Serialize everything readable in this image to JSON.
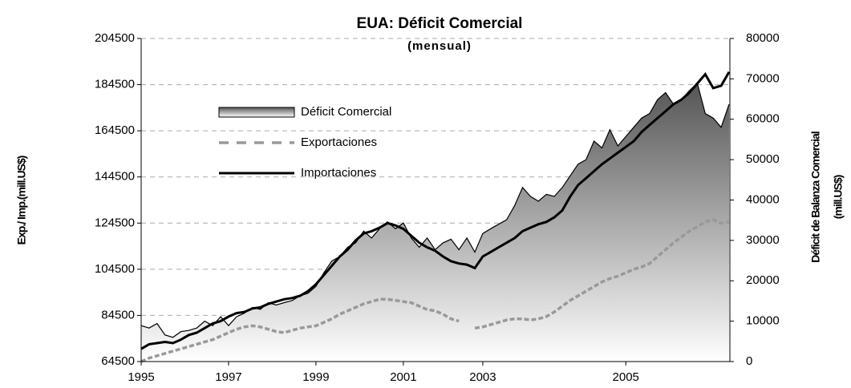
{
  "chart_data": {
    "type": "line",
    "title": "EUA: Déficit Comercial",
    "subtitle": "(mensual)",
    "y_label": "Exp./ Imp.(mill.US$)",
    "y2_label": [
      "Déficit de Balanza Comercial",
      "(mill.US$)"
    ],
    "categories": [
      "1995",
      null,
      null,
      null,
      null,
      null,
      null,
      null,
      null,
      null,
      null,
      "1997",
      null,
      null,
      null,
      null,
      null,
      null,
      null,
      null,
      null,
      null,
      "1999",
      null,
      null,
      null,
      null,
      null,
      null,
      null,
      null,
      null,
      null,
      "2001",
      null,
      null,
      null,
      null,
      null,
      null,
      null,
      null,
      null,
      "2003",
      null,
      null,
      null,
      null,
      null,
      null,
      null,
      null,
      null,
      null,
      null,
      null,
      null,
      null,
      null,
      null,
      null,
      "2005",
      null,
      null,
      null,
      null,
      null,
      null,
      null,
      null,
      null,
      null,
      null,
      null,
      null
    ],
    "ylim": [
      64500,
      204500
    ],
    "yticks": [
      64500,
      84500,
      104500,
      124500,
      144500,
      164500,
      184500,
      204500
    ],
    "y2lim": [
      0,
      80000
    ],
    "y2ticks": [
      0,
      10000,
      20000,
      30000,
      40000,
      50000,
      60000,
      70000,
      80000
    ],
    "grid": true,
    "series": [
      {
        "name": "Déficit Comercial",
        "kind": "area",
        "axis": "y2",
        "color": "#6e6e6e",
        "values": [
          8900,
          8300,
          9400,
          6600,
          6000,
          7400,
          7700,
          8300,
          10000,
          8900,
          11100,
          8900,
          11100,
          12000,
          13400,
          12900,
          14600,
          14000,
          14600,
          15100,
          16300,
          16900,
          18600,
          22000,
          24900,
          26000,
          28300,
          29400,
          32300,
          30600,
          32900,
          34600,
          32900,
          34300,
          30600,
          28300,
          30600,
          27700,
          29400,
          30300,
          27700,
          30600,
          27100,
          31700,
          32900,
          34000,
          35100,
          38600,
          43100,
          40900,
          39700,
          41400,
          40900,
          43100,
          46000,
          48900,
          50000,
          54600,
          52900,
          57400,
          53400,
          55700,
          58000,
          60300,
          61400,
          64900,
          66600,
          63700,
          64900,
          67100,
          68900,
          61400,
          60300,
          58000,
          63700
        ]
      },
      {
        "name": "Exportaciones",
        "kind": "dashed",
        "color": "#999999",
        "values": [
          64500,
          66000,
          67000,
          68000,
          69000,
          70000,
          71000,
          72000,
          73000,
          74000,
          75500,
          77000,
          78500,
          79500,
          80000,
          79500,
          78500,
          77500,
          77000,
          78000,
          79000,
          79500,
          80000,
          81500,
          83000,
          85000,
          86500,
          88000,
          89500,
          90500,
          91500,
          91500,
          91000,
          90500,
          90000,
          88500,
          87000,
          86500,
          85000,
          83000,
          82000,
          null,
          79000,
          79500,
          80500,
          81500,
          82500,
          83000,
          83000,
          82500,
          83000,
          84000,
          86000,
          88500,
          91000,
          93000,
          95000,
          97000,
          99000,
          100500,
          101500,
          103000,
          104500,
          105500,
          107000,
          110000,
          113000,
          116000,
          118500,
          121000,
          123000,
          125000,
          126000,
          124500,
          125000
        ]
      },
      {
        "name": "Importaciones",
        "kind": "solid",
        "color": "#000000",
        "values": [
          70000,
          72000,
          72500,
          73000,
          72500,
          74000,
          76000,
          77000,
          79000,
          81000,
          82000,
          84000,
          85500,
          86000,
          87500,
          88000,
          89500,
          90500,
          91500,
          92000,
          93000,
          95000,
          98000,
          102000,
          106000,
          110000,
          113000,
          117000,
          120000,
          121000,
          122500,
          124500,
          123500,
          122000,
          119000,
          116000,
          114000,
          112500,
          110000,
          108000,
          107000,
          106500,
          105000,
          110000,
          112000,
          114000,
          116000,
          118000,
          121000,
          122500,
          124000,
          125000,
          127000,
          130000,
          136000,
          141000,
          144000,
          147000,
          150000,
          152500,
          155000,
          157500,
          160000,
          164000,
          167000,
          170000,
          173000,
          176000,
          178000,
          181000,
          185000,
          189000,
          183000,
          184000,
          190000
        ]
      }
    ]
  }
}
